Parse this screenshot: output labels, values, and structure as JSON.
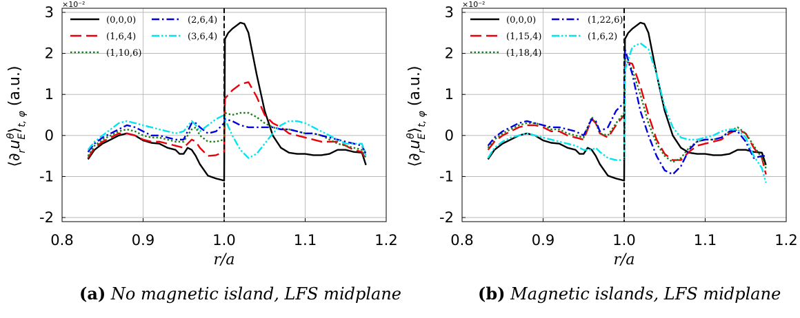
{
  "chart_data": [
    {
      "type": "line",
      "panel_tag": "(a)",
      "caption": "No magnetic island, LFS midplane",
      "xlabel": "r/a",
      "ylabel": "⟨∂ᵣu_E^θ⟩_{t,φ} (a.u.)",
      "ylabel_main": "⟨∂",
      "ylabel_sub": "r",
      "ylabel_u": "u",
      "ylabel_usub": "E",
      "ylabel_usup": "θ",
      "ylabel_close": "⟩",
      "ylabel_tsub": "t, φ",
      "ylabel_units": "(a.u.)",
      "exponent_label": "×10⁻²",
      "xlim": [
        0.8,
        1.2
      ],
      "ylim": [
        -2.1,
        3.1
      ],
      "xticks": [
        0.8,
        0.9,
        1.0,
        1.1,
        1.2
      ],
      "xtick_labels": [
        "0.8",
        "0.9",
        "1.0",
        "1.1",
        "1.2"
      ],
      "yticks": [
        -2,
        -1,
        0,
        1,
        2,
        3
      ],
      "ytick_labels": [
        "-2",
        "-1",
        "0",
        "1",
        "2",
        "3"
      ],
      "grid": true,
      "vline_x": 1.0,
      "legend_position": "top-left, two columns",
      "series": [
        {
          "name": "(0,0,0)",
          "color": "#000000",
          "dash": "solid",
          "x": [
            0.832,
            0.84,
            0.85,
            0.86,
            0.87,
            0.88,
            0.89,
            0.9,
            0.91,
            0.92,
            0.93,
            0.94,
            0.945,
            0.95,
            0.955,
            0.96,
            0.965,
            0.97,
            0.98,
            0.99,
            1.0,
            1.001,
            1.005,
            1.01,
            1.02,
            1.025,
            1.03,
            1.04,
            1.05,
            1.06,
            1.07,
            1.08,
            1.09,
            1.1,
            1.11,
            1.12,
            1.13,
            1.14,
            1.15,
            1.16,
            1.17,
            1.175
          ],
          "y": [
            -0.58,
            -0.35,
            -0.2,
            -0.1,
            0.0,
            0.05,
            0.0,
            -0.12,
            -0.18,
            -0.2,
            -0.3,
            -0.35,
            -0.45,
            -0.45,
            -0.3,
            -0.35,
            -0.5,
            -0.7,
            -0.98,
            -1.05,
            -1.1,
            2.35,
            2.5,
            2.6,
            2.75,
            2.72,
            2.5,
            1.5,
            0.6,
            0.0,
            -0.3,
            -0.42,
            -0.45,
            -0.45,
            -0.48,
            -0.48,
            -0.45,
            -0.35,
            -0.35,
            -0.4,
            -0.42,
            -0.72
          ]
        },
        {
          "name": "(1,6,4)",
          "color": "#e8000b",
          "dash": "long",
          "x": [
            0.832,
            0.84,
            0.85,
            0.86,
            0.87,
            0.88,
            0.89,
            0.9,
            0.91,
            0.92,
            0.93,
            0.94,
            0.95,
            0.96,
            0.965,
            0.97,
            0.98,
            0.99,
            1.0,
            1.001,
            1.01,
            1.02,
            1.03,
            1.04,
            1.05,
            1.06,
            1.07,
            1.08,
            1.09,
            1.1,
            1.11,
            1.12,
            1.13,
            1.14,
            1.15,
            1.16,
            1.17,
            1.175
          ],
          "y": [
            -0.55,
            -0.3,
            -0.15,
            -0.05,
            0.05,
            0.05,
            0.0,
            -0.1,
            -0.15,
            -0.15,
            -0.2,
            -0.25,
            -0.3,
            -0.1,
            -0.15,
            -0.3,
            -0.5,
            -0.48,
            -0.4,
            0.9,
            1.1,
            1.25,
            1.3,
            0.95,
            0.5,
            0.3,
            0.2,
            0.05,
            0.0,
            -0.05,
            -0.1,
            -0.15,
            -0.15,
            -0.15,
            -0.25,
            -0.35,
            -0.4,
            -0.6
          ]
        },
        {
          "name": "(1,10,6)",
          "color": "#1a7f1a",
          "dash": "dotted",
          "x": [
            0.832,
            0.84,
            0.85,
            0.86,
            0.87,
            0.88,
            0.89,
            0.9,
            0.91,
            0.92,
            0.93,
            0.94,
            0.95,
            0.96,
            0.965,
            0.97,
            0.98,
            0.99,
            1.0,
            1.001,
            1.01,
            1.02,
            1.03,
            1.04,
            1.05,
            1.06,
            1.07,
            1.08,
            1.09,
            1.1,
            1.11,
            1.12,
            1.13,
            1.14,
            1.15,
            1.16,
            1.17,
            1.175
          ],
          "y": [
            -0.5,
            -0.25,
            -0.1,
            0.0,
            0.1,
            0.15,
            0.1,
            0.0,
            -0.05,
            -0.05,
            -0.1,
            -0.15,
            -0.15,
            0.15,
            0.2,
            0.0,
            -0.15,
            -0.15,
            -0.1,
            0.55,
            0.5,
            0.55,
            0.55,
            0.45,
            0.3,
            0.2,
            0.15,
            0.15,
            0.1,
            0.05,
            0.05,
            0.0,
            -0.1,
            -0.2,
            -0.25,
            -0.3,
            -0.35,
            -0.55
          ]
        },
        {
          "name": "(2,6,4)",
          "color": "#0000dd",
          "dash": "dashdot",
          "x": [
            0.832,
            0.84,
            0.85,
            0.86,
            0.87,
            0.88,
            0.89,
            0.9,
            0.91,
            0.92,
            0.93,
            0.94,
            0.95,
            0.96,
            0.965,
            0.97,
            0.98,
            0.99,
            1.0,
            1.001,
            1.01,
            1.02,
            1.03,
            1.04,
            1.05,
            1.06,
            1.07,
            1.08,
            1.09,
            1.1,
            1.11,
            1.12,
            1.13,
            1.14,
            1.15,
            1.16,
            1.17,
            1.175
          ],
          "y": [
            -0.4,
            -0.2,
            -0.05,
            0.05,
            0.15,
            0.25,
            0.2,
            0.1,
            0.0,
            0.0,
            -0.05,
            -0.1,
            -0.1,
            0.3,
            0.3,
            0.2,
            0.05,
            0.1,
            0.3,
            0.4,
            0.35,
            0.25,
            0.2,
            0.2,
            0.2,
            0.2,
            0.15,
            0.15,
            0.1,
            0.05,
            0.05,
            0.0,
            -0.05,
            -0.1,
            -0.15,
            -0.2,
            -0.25,
            -0.45
          ]
        },
        {
          "name": "(3,6,4)",
          "color": "#00e5ee",
          "dash": "dashdotdot",
          "x": [
            0.832,
            0.84,
            0.85,
            0.86,
            0.87,
            0.88,
            0.89,
            0.9,
            0.91,
            0.92,
            0.93,
            0.94,
            0.95,
            0.96,
            0.965,
            0.97,
            0.98,
            0.99,
            1.0,
            1.001,
            1.01,
            1.02,
            1.03,
            1.04,
            1.05,
            1.06,
            1.07,
            1.08,
            1.09,
            1.1,
            1.11,
            1.12,
            1.13,
            1.14,
            1.15,
            1.16,
            1.17,
            1.175
          ],
          "y": [
            -0.35,
            -0.15,
            0.0,
            0.15,
            0.3,
            0.35,
            0.3,
            0.25,
            0.2,
            0.15,
            0.1,
            0.05,
            0.1,
            0.35,
            0.25,
            0.1,
            0.25,
            0.4,
            0.5,
            0.4,
            0.0,
            -0.35,
            -0.55,
            -0.45,
            -0.2,
            0.05,
            0.25,
            0.35,
            0.35,
            0.3,
            0.2,
            0.1,
            0.0,
            -0.1,
            -0.2,
            -0.2,
            -0.2,
            -0.5
          ]
        }
      ]
    },
    {
      "type": "line",
      "panel_tag": "(b)",
      "caption": "Magnetic islands, LFS midplane",
      "xlabel": "r/a",
      "ylabel": "⟨∂ᵣu_E^θ⟩_{t,φ} (a.u.)",
      "ylabel_main": "⟨∂",
      "ylabel_sub": "r",
      "ylabel_u": "u",
      "ylabel_usub": "E",
      "ylabel_usup": "θ",
      "ylabel_close": "⟩",
      "ylabel_tsub": "t, φ",
      "ylabel_units": "(a.u.)",
      "exponent_label": "×10⁻²",
      "xlim": [
        0.8,
        1.2
      ],
      "ylim": [
        -2.1,
        3.1
      ],
      "xticks": [
        0.8,
        0.9,
        1.0,
        1.1,
        1.2
      ],
      "xtick_labels": [
        "0.8",
        "0.9",
        "1.0",
        "1.1",
        "1.2"
      ],
      "yticks": [
        -2,
        -1,
        0,
        1,
        2,
        3
      ],
      "ytick_labels": [
        "-2",
        "-1",
        "0",
        "1",
        "2",
        "3"
      ],
      "grid": true,
      "vline_x": 1.0,
      "legend_position": "top-left, two columns",
      "series": [
        {
          "name": "(0,0,0)",
          "color": "#000000",
          "dash": "solid",
          "x": [
            0.832,
            0.84,
            0.85,
            0.86,
            0.87,
            0.88,
            0.89,
            0.9,
            0.91,
            0.92,
            0.93,
            0.94,
            0.945,
            0.95,
            0.955,
            0.96,
            0.965,
            0.97,
            0.98,
            0.99,
            1.0,
            1.001,
            1.005,
            1.01,
            1.02,
            1.025,
            1.03,
            1.04,
            1.05,
            1.06,
            1.07,
            1.08,
            1.09,
            1.1,
            1.11,
            1.12,
            1.13,
            1.14,
            1.15,
            1.16,
            1.17,
            1.175
          ],
          "y": [
            -0.58,
            -0.35,
            -0.2,
            -0.1,
            0.0,
            0.05,
            0.0,
            -0.12,
            -0.18,
            -0.2,
            -0.3,
            -0.35,
            -0.45,
            -0.45,
            -0.3,
            -0.35,
            -0.5,
            -0.7,
            -0.98,
            -1.05,
            -1.1,
            2.35,
            2.5,
            2.6,
            2.75,
            2.72,
            2.5,
            1.5,
            0.6,
            0.0,
            -0.3,
            -0.42,
            -0.45,
            -0.45,
            -0.48,
            -0.48,
            -0.45,
            -0.35,
            -0.35,
            -0.4,
            -0.42,
            -0.72
          ]
        },
        {
          "name": "(1,15,4)",
          "color": "#e8000b",
          "dash": "long",
          "x": [
            0.832,
            0.84,
            0.85,
            0.86,
            0.87,
            0.88,
            0.89,
            0.9,
            0.91,
            0.92,
            0.93,
            0.94,
            0.95,
            0.96,
            0.965,
            0.97,
            0.98,
            0.99,
            1.0,
            1.001,
            1.01,
            1.02,
            1.03,
            1.04,
            1.05,
            1.06,
            1.07,
            1.08,
            1.09,
            1.1,
            1.11,
            1.12,
            1.13,
            1.14,
            1.15,
            1.16,
            1.17,
            1.175
          ],
          "y": [
            -0.35,
            -0.15,
            0.0,
            0.1,
            0.2,
            0.25,
            0.25,
            0.2,
            0.1,
            0.1,
            0.0,
            -0.05,
            -0.1,
            0.4,
            0.3,
            0.05,
            -0.05,
            0.25,
            0.5,
            1.8,
            1.75,
            1.2,
            0.5,
            -0.1,
            -0.45,
            -0.6,
            -0.6,
            -0.4,
            -0.25,
            -0.2,
            -0.15,
            -0.1,
            0.05,
            0.15,
            0.05,
            -0.3,
            -0.55,
            -0.95
          ]
        },
        {
          "name": "(1,18,4)",
          "color": "#1a7f1a",
          "dash": "dotted",
          "x": [
            0.832,
            0.84,
            0.85,
            0.86,
            0.87,
            0.88,
            0.89,
            0.9,
            0.91,
            0.92,
            0.93,
            0.94,
            0.95,
            0.96,
            0.965,
            0.97,
            0.98,
            0.99,
            1.0,
            1.001,
            1.01,
            1.02,
            1.03,
            1.04,
            1.05,
            1.06,
            1.07,
            1.08,
            1.09,
            1.1,
            1.11,
            1.12,
            1.13,
            1.14,
            1.15,
            1.16,
            1.17,
            1.175
          ],
          "y": [
            -0.3,
            -0.1,
            0.05,
            0.15,
            0.25,
            0.3,
            0.3,
            0.25,
            0.15,
            0.15,
            0.05,
            0.0,
            -0.05,
            0.45,
            0.3,
            0.05,
            0.0,
            0.3,
            0.55,
            1.9,
            1.6,
            1.0,
            0.3,
            -0.2,
            -0.5,
            -0.65,
            -0.55,
            -0.3,
            -0.15,
            -0.1,
            -0.1,
            -0.05,
            0.1,
            0.2,
            0.05,
            -0.25,
            -0.55,
            -0.8
          ]
        },
        {
          "name": "(1,22,6)",
          "color": "#0000dd",
          "dash": "dashdot",
          "x": [
            0.832,
            0.84,
            0.85,
            0.86,
            0.87,
            0.88,
            0.89,
            0.9,
            0.91,
            0.92,
            0.93,
            0.94,
            0.95,
            0.96,
            0.965,
            0.97,
            0.98,
            0.99,
            1.0,
            1.001,
            1.01,
            1.02,
            1.03,
            1.04,
            1.05,
            1.06,
            1.07,
            1.08,
            1.09,
            1.1,
            1.11,
            1.12,
            1.13,
            1.14,
            1.15,
            1.16,
            1.17,
            1.175
          ],
          "y": [
            -0.25,
            -0.05,
            0.1,
            0.2,
            0.3,
            0.35,
            0.3,
            0.25,
            0.2,
            0.2,
            0.15,
            0.1,
            0.0,
            0.4,
            0.35,
            0.1,
            0.2,
            0.6,
            0.8,
            2.1,
            1.5,
            0.6,
            0.0,
            -0.5,
            -0.85,
            -0.95,
            -0.75,
            -0.35,
            -0.15,
            -0.1,
            -0.1,
            -0.05,
            0.1,
            0.1,
            -0.15,
            -0.55,
            -0.5,
            -0.5
          ]
        },
        {
          "name": "(1,6,2)",
          "color": "#00e5ee",
          "dash": "dashdotdot",
          "x": [
            0.832,
            0.84,
            0.85,
            0.86,
            0.87,
            0.88,
            0.89,
            0.9,
            0.91,
            0.92,
            0.93,
            0.94,
            0.95,
            0.96,
            0.965,
            0.97,
            0.98,
            0.99,
            1.0,
            1.001,
            1.01,
            1.02,
            1.03,
            1.04,
            1.05,
            1.06,
            1.07,
            1.08,
            1.09,
            1.1,
            1.11,
            1.12,
            1.13,
            1.14,
            1.15,
            1.16,
            1.17,
            1.175
          ],
          "y": [
            -0.55,
            -0.3,
            -0.15,
            -0.05,
            0.0,
            0.05,
            0.0,
            -0.05,
            -0.1,
            -0.15,
            -0.2,
            -0.25,
            -0.35,
            -0.35,
            -0.3,
            -0.4,
            -0.55,
            -0.6,
            -0.6,
            1.6,
            2.15,
            2.25,
            2.1,
            1.5,
            0.7,
            0.2,
            -0.05,
            -0.1,
            -0.1,
            -0.05,
            0.0,
            0.1,
            0.15,
            0.15,
            -0.05,
            -0.5,
            -0.8,
            -1.15
          ]
        }
      ]
    }
  ]
}
